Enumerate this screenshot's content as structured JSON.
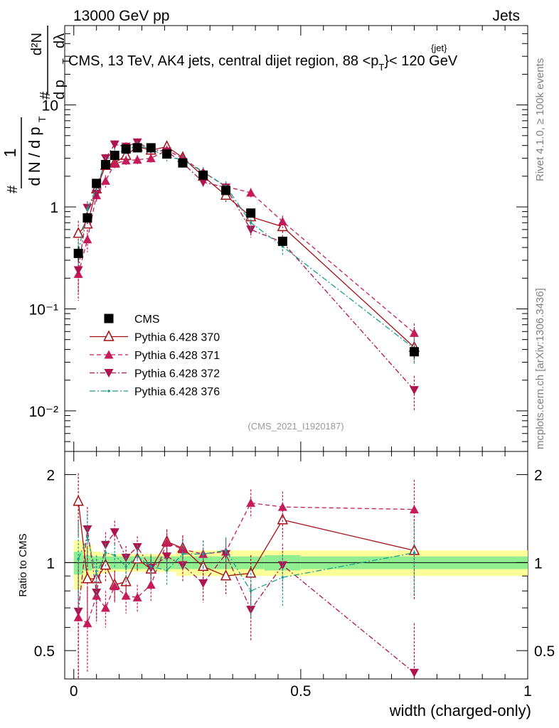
{
  "header": {
    "left": "13000 GeV pp",
    "right": "Jets"
  },
  "main_title": {
    "prefix": "CMS, 13 TeV, AK4 jets, central dijet region, 88 <p",
    "sup": "{jet}",
    "sub": "T",
    "suffix": "}< 120 GeV"
  },
  "side_labels": {
    "rivet": "Rivet 4.1.0, ≥ 100k events",
    "mcplots": "mcplots.cern.ch [arXiv:1306.3436]"
  },
  "watermark": "(CMS_2021_I1920187)",
  "colors": {
    "cms": "#000000",
    "p370": "#a50f15",
    "p371": "#c51b5a",
    "p372": "#b0124f",
    "p376": "#1b9e8e",
    "band_inner": "#90ee90",
    "band_outer": "#ffff99"
  },
  "chart_data": [
    {
      "type": "scatter",
      "panel": "main",
      "title": "CMS, 13 TeV, AK4 jets, central dijet region, 88 < p_T^{jet} < 120 GeV",
      "xlabel": "width (charged-only)",
      "ylabel_parts": [
        "1",
        "d N / d p",
        "T",
        "#",
        "d²N",
        "d p",
        "T",
        "dλ",
        "#"
      ],
      "yscale": "log",
      "xlim": [
        -0.02,
        1.0
      ],
      "ylim": [
        0.004,
        60
      ],
      "ytick_labels": [
        "10⁻²",
        "10⁻¹",
        "1",
        "10"
      ],
      "x": [
        0.01,
        0.03,
        0.05,
        0.07,
        0.09,
        0.115,
        0.14,
        0.17,
        0.205,
        0.24,
        0.285,
        0.335,
        0.39,
        0.46,
        0.75
      ],
      "series": [
        {
          "name": "CMS",
          "style": "square",
          "values": [
            0.35,
            0.78,
            1.7,
            2.6,
            3.2,
            3.7,
            3.8,
            3.8,
            3.3,
            2.7,
            2.05,
            1.45,
            0.87,
            0.46,
            0.038
          ],
          "err": [
            0.06,
            0.1,
            0.12,
            0.15,
            0.18,
            0.2,
            0.2,
            0.2,
            0.2,
            0.15,
            0.12,
            0.1,
            0.07,
            0.04,
            0.005
          ]
        },
        {
          "name": "Pythia 6.428 370",
          "style": "open-triangle-up-solid",
          "values": [
            0.55,
            0.68,
            1.5,
            2.55,
            2.7,
            3.2,
            3.9,
            3.6,
            3.9,
            3.05,
            2.0,
            1.3,
            0.8,
            0.64,
            0.042
          ],
          "err": [
            0.18,
            0.14,
            0.2,
            0.3,
            0.3,
            0.35,
            0.4,
            0.4,
            0.4,
            0.3,
            0.25,
            0.18,
            0.12,
            0.1,
            0.012
          ]
        },
        {
          "name": "Pythia 6.428 371",
          "style": "triangle-up-dashed",
          "values": [
            0.22,
            0.48,
            1.3,
            1.8,
            2.65,
            2.85,
            2.9,
            3.0,
            3.6,
            3.0,
            2.2,
            1.58,
            1.38,
            0.72,
            0.058
          ],
          "err": [
            0.1,
            0.12,
            0.2,
            0.25,
            0.3,
            0.32,
            0.33,
            0.35,
            0.4,
            0.3,
            0.25,
            0.18,
            0.15,
            0.1,
            0.014
          ]
        },
        {
          "name": "Pythia 6.428 372",
          "style": "triangle-down-dashdot",
          "values": [
            0.24,
            0.98,
            1.35,
            3.0,
            4.1,
            3.9,
            4.3,
            3.65,
            3.5,
            2.7,
            1.75,
            1.55,
            0.6,
            0.45,
            0.016
          ],
          "err": [
            0.1,
            0.15,
            0.2,
            0.3,
            0.4,
            0.4,
            0.4,
            0.35,
            0.35,
            0.3,
            0.2,
            0.18,
            0.1,
            0.08,
            0.006
          ]
        },
        {
          "name": "Pythia 6.428 376",
          "style": "dot-dashdot",
          "values": [
            0.36,
            0.95,
            1.55,
            2.8,
            3.4,
            3.6,
            4.0,
            3.7,
            3.1,
            2.9,
            2.2,
            1.6,
            0.7,
            0.41,
            0.041
          ],
          "err": [
            0.1,
            0.15,
            0.2,
            0.3,
            0.35,
            0.35,
            0.4,
            0.35,
            0.3,
            0.3,
            0.25,
            0.18,
            0.12,
            0.08,
            0.012
          ]
        }
      ],
      "legend": [
        "CMS",
        "Pythia 6.428 370",
        "Pythia 6.428 371",
        "Pythia 6.428 372",
        "Pythia 6.428 376"
      ],
      "legend_position": "lower-left"
    },
    {
      "type": "scatter",
      "panel": "ratio",
      "ylabel": "Ratio to CMS",
      "xlabel": "width (charged-only)",
      "ylim": [
        0.4,
        2.4
      ],
      "xlim": [
        -0.02,
        1.0
      ],
      "xtick_labels": [
        "0",
        "0.5",
        "1"
      ],
      "ytick_labels": [
        "0.5",
        "1",
        "2"
      ],
      "reference_line": 1.0,
      "band_edges": [
        0.0,
        0.02,
        0.04,
        0.06,
        0.08,
        0.1,
        0.13,
        0.155,
        0.185,
        0.225,
        0.26,
        0.31,
        0.36,
        0.42,
        0.5,
        1.0
      ],
      "band_inner": [
        0.09,
        0.06,
        0.05,
        0.05,
        0.05,
        0.05,
        0.05,
        0.05,
        0.05,
        0.05,
        0.05,
        0.05,
        0.05,
        0.06,
        0.05
      ],
      "band_outer": [
        0.19,
        0.15,
        0.09,
        0.08,
        0.07,
        0.07,
        0.07,
        0.07,
        0.07,
        0.1,
        0.1,
        0.1,
        0.1,
        0.1,
        0.1
      ],
      "x": [
        0.01,
        0.03,
        0.05,
        0.07,
        0.09,
        0.115,
        0.14,
        0.17,
        0.205,
        0.24,
        0.285,
        0.335,
        0.39,
        0.46,
        0.75
      ],
      "series": [
        {
          "name": "Pythia 6.428 370",
          "values": [
            1.62,
            0.88,
            0.88,
            0.98,
            0.84,
            0.86,
            1.03,
            0.95,
            1.18,
            1.12,
            0.97,
            0.9,
            0.92,
            1.4,
            1.1
          ],
          "err": [
            0.4,
            0.25,
            0.15,
            0.12,
            0.1,
            0.1,
            0.1,
            0.1,
            0.12,
            0.12,
            0.12,
            0.12,
            0.14,
            0.2,
            0.35
          ]
        },
        {
          "name": "Pythia 6.428 371",
          "values": [
            0.65,
            0.62,
            0.77,
            0.7,
            0.83,
            0.77,
            0.76,
            0.84,
            1.17,
            1.11,
            1.07,
            1.09,
            1.6,
            1.55,
            1.52
          ],
          "err": [
            0.3,
            0.2,
            0.15,
            0.1,
            0.1,
            0.1,
            0.08,
            0.1,
            0.12,
            0.12,
            0.12,
            0.12,
            0.18,
            0.2,
            0.4
          ]
        },
        {
          "name": "Pythia 6.428 372",
          "values": [
            0.68,
            1.3,
            0.79,
            1.15,
            1.27,
            1.04,
            1.13,
            0.96,
            1.05,
            0.98,
            0.85,
            1.07,
            0.69,
            0.98,
            0.42
          ],
          "err": [
            0.35,
            0.25,
            0.15,
            0.12,
            0.12,
            0.1,
            0.1,
            0.1,
            0.1,
            0.12,
            0.12,
            0.12,
            0.15,
            0.18,
            0.2
          ]
        },
        {
          "name": "Pythia 6.428 376",
          "values": [
            1.03,
            1.22,
            0.91,
            1.08,
            1.06,
            0.97,
            1.05,
            0.97,
            0.94,
            1.07,
            1.07,
            1.1,
            0.8,
            0.89,
            1.08
          ],
          "err": [
            0.35,
            0.25,
            0.15,
            0.12,
            0.1,
            0.1,
            0.1,
            0.1,
            0.1,
            0.12,
            0.12,
            0.12,
            0.15,
            0.18,
            0.3
          ]
        }
      ]
    }
  ]
}
